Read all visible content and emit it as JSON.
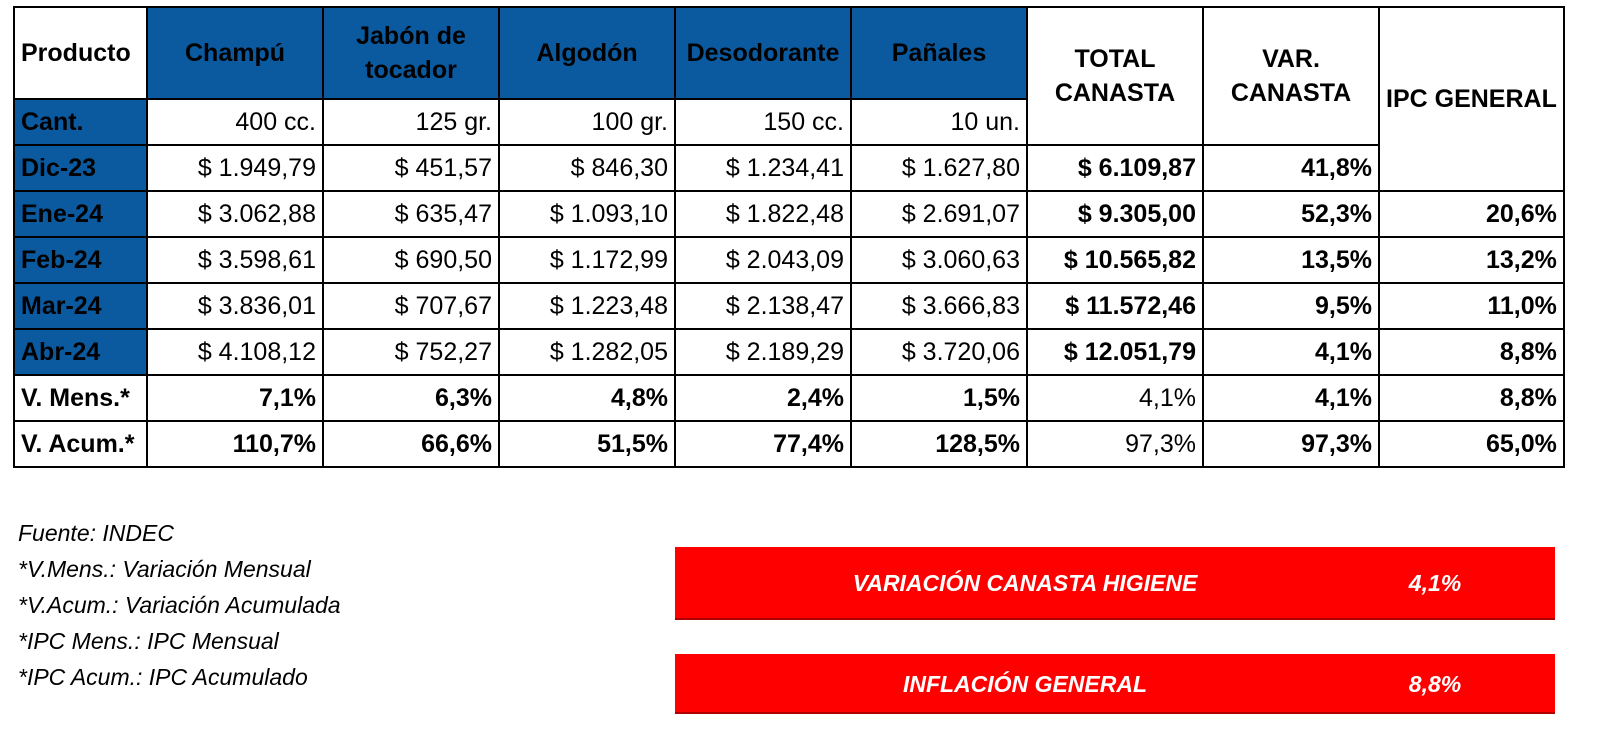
{
  "table": {
    "header": {
      "producto": "Producto",
      "products": [
        {
          "line1": "Champú",
          "line2": ""
        },
        {
          "line1": "Jabón de",
          "line2": "tocador"
        },
        {
          "line1": "Algodón",
          "line2": ""
        },
        {
          "line1": "Desodorante",
          "line2": ""
        },
        {
          "line1": "Pañales",
          "line2": ""
        }
      ],
      "total_canasta_1": "TOTAL",
      "total_canasta_2": "CANASTA",
      "var_canasta_1": "VAR.",
      "var_canasta_2": "CANASTA",
      "ipc_general": "IPC GENERAL"
    },
    "cant": {
      "label": "Cant.",
      "values": [
        "400 cc.",
        "125 gr.",
        "100 gr.",
        "150 cc.",
        "10 un."
      ]
    },
    "rows": [
      {
        "label": "Dic-23",
        "values": [
          "$ 1.949,79",
          "$ 451,57",
          "$ 846,30",
          "$ 1.234,41",
          "$ 1.627,80"
        ],
        "total": "$ 6.109,87",
        "var": "41,8%",
        "ipc": ""
      },
      {
        "label": "Ene-24",
        "values": [
          "$ 3.062,88",
          "$ 635,47",
          "$ 1.093,10",
          "$ 1.822,48",
          "$ 2.691,07"
        ],
        "total": "$ 9.305,00",
        "var": "52,3%",
        "ipc": "20,6%"
      },
      {
        "label": "Feb-24",
        "values": [
          "$ 3.598,61",
          "$ 690,50",
          "$ 1.172,99",
          "$ 2.043,09",
          "$ 3.060,63"
        ],
        "total": "$ 10.565,82",
        "var": "13,5%",
        "ipc": "13,2%"
      },
      {
        "label": "Mar-24",
        "values": [
          "$ 3.836,01",
          "$ 707,67",
          "$ 1.223,48",
          "$ 2.138,47",
          "$ 3.666,83"
        ],
        "total": "$ 11.572,46",
        "var": "9,5%",
        "ipc": "11,0%"
      },
      {
        "label": "Abr-24",
        "values": [
          "$ 4.108,12",
          "$ 752,27",
          "$ 1.282,05",
          "$ 2.189,29",
          "$ 3.720,06"
        ],
        "total": "$ 12.051,79",
        "var": "4,1%",
        "ipc": "8,8%"
      }
    ],
    "v_mens": {
      "label": "V. Mens.*",
      "values": [
        "7,1%",
        "6,3%",
        "4,8%",
        "2,4%",
        "1,5%"
      ],
      "total": "4,1%",
      "var": "4,1%",
      "ipc": "8,8%"
    },
    "v_acum": {
      "label": "V. Acum.*",
      "values": [
        "110,7%",
        "66,6%",
        "51,5%",
        "77,4%",
        "128,5%"
      ],
      "total": "97,3%",
      "var": "97,3%",
      "ipc": "65,0%"
    }
  },
  "notes": [
    "Fuente: INDEC",
    "*V.Mens.: Variación Mensual",
    "*V.Acum.: Variación Acumulada",
    "*IPC Mens.: IPC Mensual",
    "*IPC Acum.: IPC Acumulado"
  ],
  "banners": {
    "canasta": {
      "label": "VARIACIÓN CANASTA HIGIENE",
      "value": "4,1%"
    },
    "inflacion": {
      "label": "INFLACIÓN GENERAL",
      "value": "8,8%"
    }
  },
  "colors": {
    "blue": "#0b5aa0",
    "red": "#e30613",
    "banner_red": "#ff0000"
  }
}
